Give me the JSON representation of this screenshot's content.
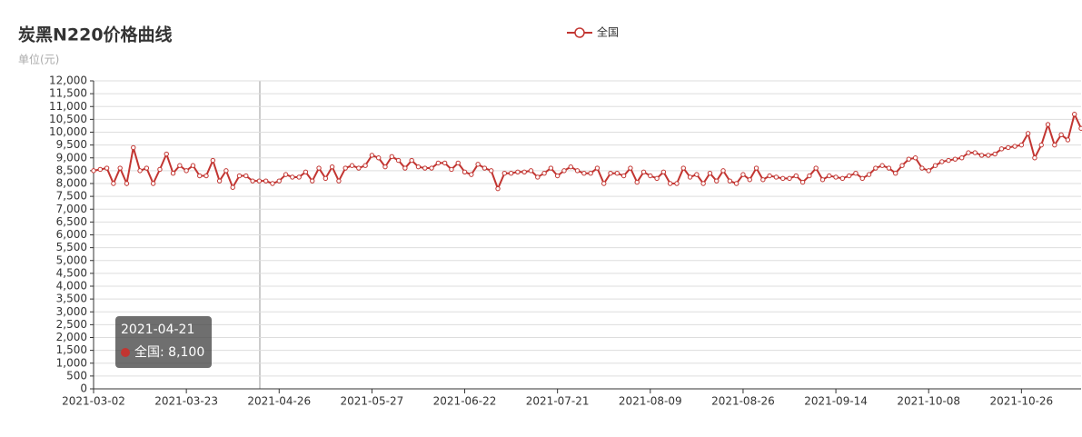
{
  "chart_data": {
    "type": "line",
    "title": "炭黑N220价格曲线",
    "subtitle": "单位(元)",
    "categories": [
      "2021-03-02",
      null,
      null,
      null,
      null,
      null,
      null,
      null,
      null,
      null,
      null,
      null,
      null,
      null,
      "2021-03-23",
      null,
      null,
      null,
      null,
      null,
      null,
      null,
      null,
      null,
      null,
      null,
      null,
      null,
      "2021-04-26",
      null,
      null,
      null,
      null,
      null,
      null,
      null,
      null,
      null,
      null,
      null,
      null,
      null,
      "2021-05-27",
      null,
      null,
      null,
      null,
      null,
      null,
      null,
      null,
      null,
      null,
      null,
      null,
      null,
      "2021-06-22",
      null,
      null,
      null,
      null,
      null,
      null,
      null,
      null,
      null,
      null,
      null,
      null,
      null,
      "2021-07-21",
      null,
      null,
      null,
      null,
      null,
      null,
      null,
      null,
      null,
      null,
      null,
      null,
      null,
      "2021-08-09",
      null,
      null,
      null,
      null,
      null,
      null,
      null,
      null,
      null,
      null,
      null,
      null,
      null,
      "2021-08-26",
      null,
      null,
      null,
      null,
      null,
      null,
      null,
      null,
      null,
      null,
      null,
      null,
      null,
      "2021-09-14",
      null,
      null,
      null,
      null,
      null,
      null,
      null,
      null,
      null,
      null,
      null,
      null,
      null,
      "2021-10-08",
      null,
      null,
      null,
      null,
      null,
      null,
      null,
      null,
      null,
      null,
      null,
      null,
      null,
      "2021-10-26",
      null,
      null,
      null,
      null,
      null,
      null,
      null,
      null,
      null
    ],
    "series": [
      {
        "name": "全国",
        "color": "#c23531",
        "values": [
          8500,
          8550,
          8600,
          8000,
          8600,
          8000,
          9400,
          8500,
          8600,
          8000,
          8550,
          9150,
          8400,
          8700,
          8500,
          8700,
          8300,
          8300,
          8900,
          8100,
          8500,
          7850,
          8300,
          8300,
          8100,
          8100,
          8100,
          8000,
          8100,
          8350,
          8250,
          8250,
          8450,
          8100,
          8600,
          8200,
          8650,
          8100,
          8600,
          8700,
          8600,
          8700,
          9100,
          9000,
          8650,
          9050,
          8900,
          8600,
          8900,
          8650,
          8600,
          8600,
          8800,
          8800,
          8550,
          8800,
          8450,
          8350,
          8750,
          8600,
          8500,
          7800,
          8400,
          8400,
          8450,
          8450,
          8500,
          8250,
          8400,
          8600,
          8300,
          8500,
          8650,
          8500,
          8400,
          8400,
          8600,
          8000,
          8400,
          8400,
          8300,
          8600,
          8050,
          8450,
          8300,
          8200,
          8450,
          8000,
          8000,
          8600,
          8250,
          8350,
          8000,
          8400,
          8100,
          8500,
          8100,
          8000,
          8350,
          8150,
          8600,
          8150,
          8300,
          8250,
          8200,
          8200,
          8300,
          8050,
          8300,
          8600,
          8150,
          8300,
          8250,
          8200,
          8300,
          8400,
          8200,
          8350,
          8600,
          8700,
          8600,
          8400,
          8700,
          8950,
          9000,
          8600,
          8500,
          8700,
          8850,
          8900,
          8950,
          9000,
          9200,
          9200,
          9100,
          9100,
          9150,
          9350,
          9400,
          9450,
          9500,
          9950,
          9000,
          9500,
          10300,
          9500,
          9900,
          9700,
          10700,
          10150
        ]
      }
    ],
    "ylim": [
      0,
      12000
    ],
    "yticks": [
      0,
      500,
      {
        "value": 1000,
        "label": "1,000"
      },
      {
        "value": 1500,
        "label": "1,500"
      },
      {
        "value": 2000,
        "label": "2,000"
      },
      {
        "value": 2500,
        "label": "2,500"
      },
      {
        "value": 3000,
        "label": "3,000"
      },
      {
        "value": 3500,
        "label": "3,500"
      },
      {
        "value": 4000,
        "label": "4,000"
      },
      {
        "value": 4500,
        "label": "4,500"
      },
      {
        "value": 5000,
        "label": "5,000"
      },
      {
        "value": 5500,
        "label": "5,500"
      },
      {
        "value": 6000,
        "label": "6,000"
      },
      {
        "value": 6500,
        "label": "6,500"
      },
      {
        "value": 7000,
        "label": "7,000"
      },
      {
        "value": 7500,
        "label": "7,500"
      },
      {
        "value": 8000,
        "label": "8,000"
      },
      {
        "value": 8500,
        "label": "8,500"
      },
      {
        "value": 9000,
        "label": "9,000"
      },
      {
        "value": 9500,
        "label": "9,500"
      },
      {
        "value": 10000,
        "label": "10,000"
      },
      {
        "value": 10500,
        "label": "10,500"
      },
      {
        "value": 11000,
        "label": "11,000"
      },
      {
        "value": 11500,
        "label": "11,500"
      },
      {
        "value": 12000,
        "label": "12,000"
      }
    ],
    "grid": true,
    "tooltip": {
      "title": "2021-04-21",
      "text": "全国: 8,100"
    }
  }
}
